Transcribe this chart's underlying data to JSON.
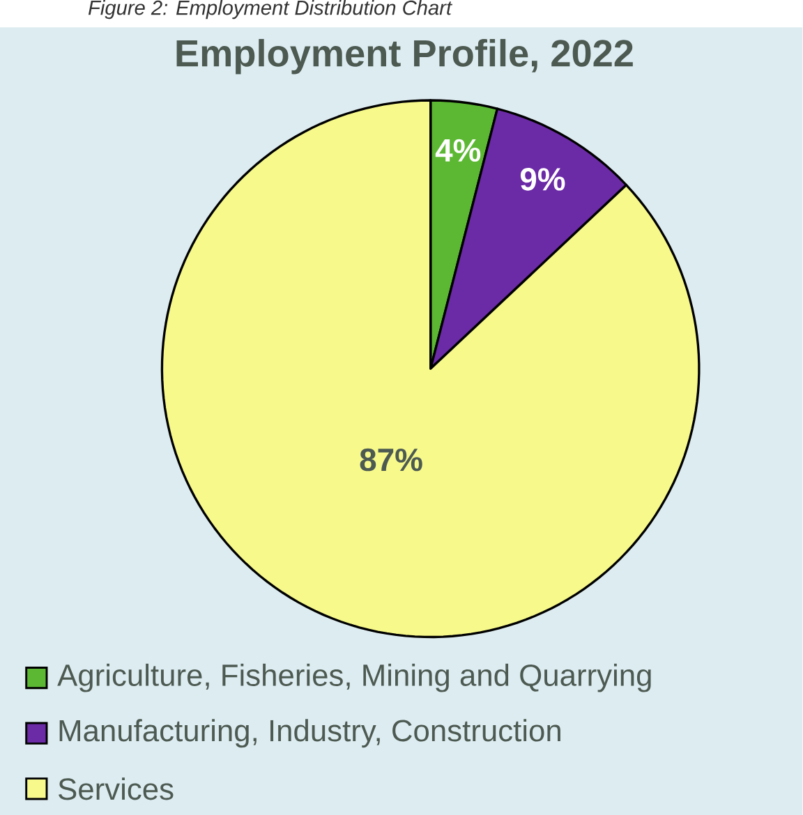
{
  "chart_data": {
    "type": "pie",
    "title": "Employment Profile, 2022",
    "annotations": [
      "Figure 2: Employment Distribution Chart"
    ],
    "categories": [
      "Agriculture, Fisheries, Mining and Quarrying",
      "Manufacturing, Industry, Construction",
      "Services"
    ],
    "values": [
      4,
      9,
      87
    ],
    "value_labels": [
      "4%",
      "9%",
      "87%"
    ],
    "colors": [
      "#5cb833",
      "#6b2aa6",
      "#f7f98a"
    ],
    "legend": "bottom"
  }
}
